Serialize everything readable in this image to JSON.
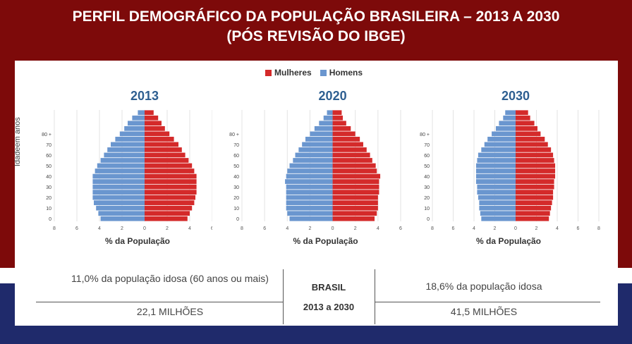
{
  "title": {
    "line1": "PERFIL DEMOGRÁFICO DA POPULAÇÃO BRASILEIRA – 2013 A 2030",
    "line2": "(PÓS REVISÃO DO IBGE)"
  },
  "legend": {
    "women": "Mulheres",
    "men": "Homens"
  },
  "colors": {
    "women": "#d42a2a",
    "men": "#6a96cf",
    "accent_title": "#2e5f91",
    "bg_top": "#7d0a0a",
    "bg_bottom": "#1f2a6b"
  },
  "chart_data": [
    {
      "type": "bar",
      "title": "2013",
      "xlabel": "% da População",
      "ylabel": "Idadeem anos",
      "age_labels": [
        "0",
        "10",
        "20",
        "30",
        "40",
        "50",
        "60",
        "70",
        "80 +"
      ],
      "x_ticks": [
        "8",
        "6",
        "4",
        "2",
        "0",
        "2",
        "4",
        "6"
      ],
      "xlim": [
        -8,
        6
      ],
      "series": [
        {
          "name": "Homens",
          "values": [
            3.9,
            4.1,
            4.3,
            4.5,
            4.6,
            4.6,
            4.6,
            4.6,
            4.6,
            4.4,
            4.2,
            3.9,
            3.6,
            3.3,
            3.0,
            2.6,
            2.2,
            1.8,
            1.5,
            1.1,
            0.6
          ]
        },
        {
          "name": "Mulheres",
          "values": [
            3.8,
            4.0,
            4.2,
            4.4,
            4.5,
            4.6,
            4.6,
            4.6,
            4.6,
            4.4,
            4.2,
            3.9,
            3.6,
            3.3,
            3.0,
            2.6,
            2.2,
            1.8,
            1.5,
            1.2,
            0.8
          ]
        }
      ]
    },
    {
      "type": "bar",
      "title": "2020",
      "xlabel": "% da População",
      "age_labels": [
        "0",
        "10",
        "20",
        "30",
        "40",
        "50",
        "60",
        "70",
        "80 +"
      ],
      "x_ticks": [
        "8",
        "6",
        "4",
        "2",
        "0",
        "2",
        "4",
        "6"
      ],
      "xlim": [
        -8,
        6
      ],
      "series": [
        {
          "name": "Homens",
          "values": [
            3.8,
            4.0,
            4.1,
            4.1,
            4.1,
            4.1,
            4.1,
            4.2,
            4.1,
            4.0,
            3.8,
            3.5,
            3.3,
            3.0,
            2.7,
            2.4,
            2.0,
            1.6,
            1.2,
            0.8,
            0.5
          ]
        },
        {
          "name": "Mulheres",
          "values": [
            3.7,
            3.9,
            4.0,
            4.0,
            4.0,
            4.1,
            4.1,
            4.1,
            4.2,
            3.9,
            3.8,
            3.5,
            3.3,
            3.0,
            2.7,
            2.4,
            2.0,
            1.6,
            1.2,
            0.9,
            0.8
          ]
        }
      ]
    },
    {
      "type": "bar",
      "title": "2030",
      "xlabel": "% da População",
      "age_labels": [
        "0",
        "10",
        "20",
        "30",
        "40",
        "50",
        "60",
        "70",
        "80 +"
      ],
      "x_ticks": [
        "8",
        "6",
        "4",
        "2",
        "0",
        "2",
        "4",
        "6",
        "8"
      ],
      "xlim": [
        -8,
        8
      ],
      "series": [
        {
          "name": "Homens",
          "values": [
            3.3,
            3.4,
            3.5,
            3.5,
            3.6,
            3.7,
            3.7,
            3.8,
            3.8,
            3.8,
            3.8,
            3.7,
            3.6,
            3.3,
            3.0,
            2.7,
            2.3,
            1.9,
            1.6,
            1.2,
            1.0
          ]
        },
        {
          "name": "Mulheres",
          "values": [
            3.2,
            3.3,
            3.4,
            3.5,
            3.6,
            3.6,
            3.7,
            3.7,
            3.8,
            3.8,
            3.8,
            3.7,
            3.6,
            3.4,
            3.1,
            2.8,
            2.4,
            2.1,
            1.8,
            1.4,
            1.2
          ]
        }
      ]
    }
  ],
  "table": {
    "left_top": "11,0% da população idosa (60 anos ou mais)",
    "left_bottom": "22,1 MILHÕES",
    "center_line1": "BRASIL",
    "center_line2": "2013 a 2030",
    "right_top": "18,6% da população idosa",
    "right_bottom": "41,5 MILHÕES"
  }
}
